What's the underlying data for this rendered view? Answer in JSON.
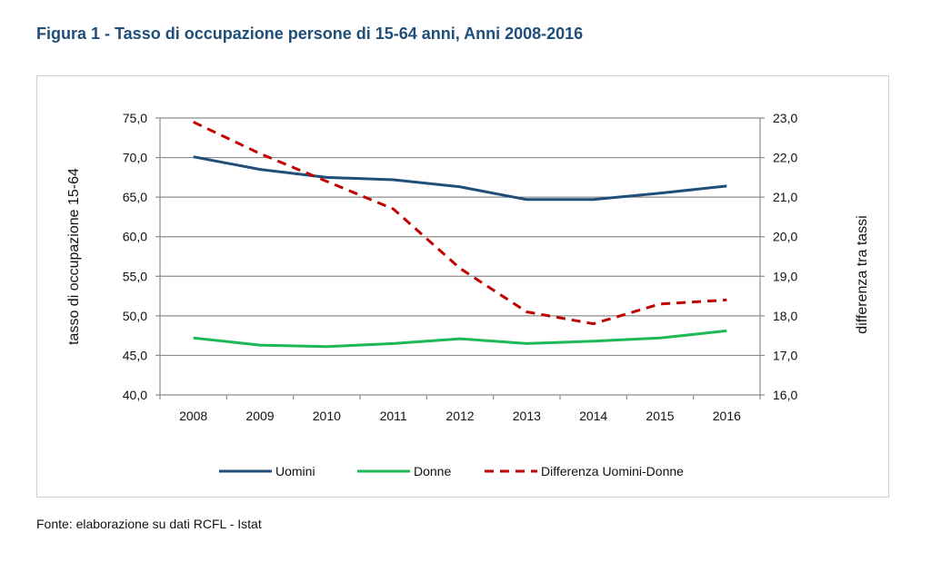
{
  "figure": {
    "title": "Figura 1 - Tasso di occupazione persone di 15-64 anni, Anni 2008-2016",
    "source": "Fonte: elaborazione su dati RCFL - Istat"
  },
  "colors": {
    "title": "#1F4E79",
    "uomini": "#1F4E79",
    "donne": "#1DB954",
    "differenza": "#C00000",
    "grid": "#8C8C8C"
  },
  "chart_data": {
    "type": "line",
    "title": "",
    "xlabel": "",
    "ylabel": "tasso di occupazione 15-64",
    "y2label": "differenza  tra tassi",
    "categories": [
      "2008",
      "2009",
      "2010",
      "2011",
      "2012",
      "2013",
      "2014",
      "2015",
      "2016"
    ],
    "ylim": [
      40,
      75
    ],
    "y2lim": [
      16,
      23
    ],
    "yticks": [
      "40,0",
      "45,0",
      "50,0",
      "55,0",
      "60,0",
      "65,0",
      "70,0",
      "75,0"
    ],
    "y2ticks": [
      "16,0",
      "17,0",
      "18,0",
      "19,0",
      "20,0",
      "21,0",
      "22,0",
      "23,0"
    ],
    "grid": true,
    "legend_position": "bottom",
    "series": [
      {
        "name": "Uomini",
        "axis": "left",
        "style": "solid",
        "values": [
          70.1,
          68.5,
          67.5,
          67.2,
          66.3,
          64.7,
          64.7,
          65.5,
          66.4
        ]
      },
      {
        "name": "Donne",
        "axis": "left",
        "style": "solid",
        "values": [
          47.2,
          46.3,
          46.1,
          46.5,
          47.1,
          46.5,
          46.8,
          47.2,
          48.1
        ]
      },
      {
        "name": "Differenza Uomini-Donne",
        "axis": "right",
        "style": "dashed",
        "values": [
          22.9,
          22.1,
          21.4,
          20.7,
          19.2,
          18.1,
          17.8,
          18.3,
          18.4
        ]
      }
    ]
  }
}
